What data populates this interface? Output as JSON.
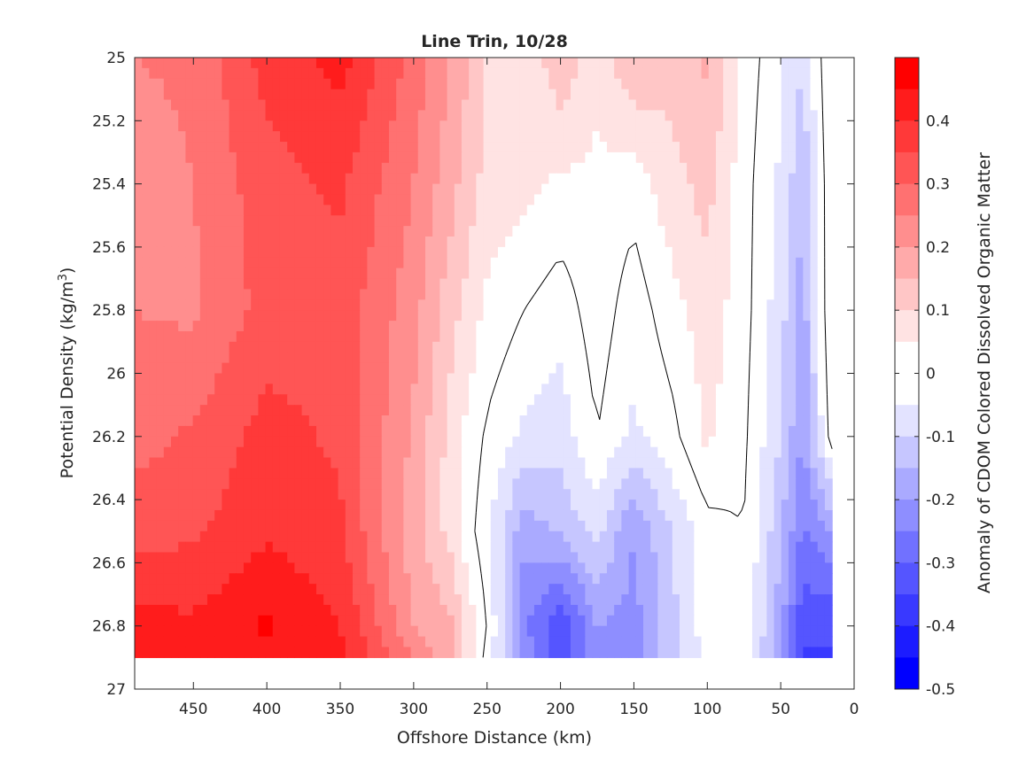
{
  "chart_data": {
    "type": "heatmap",
    "subtype": "filled-contour",
    "title": "Line Trin, 10/28",
    "xlabel": "Offshore Distance (km)",
    "ylabel_main": "Potential Density (kg/m",
    "ylabel_sup": "3",
    "ylabel_close": ")",
    "colorbar_label": "Anomaly of CDOM Colored Dissolved Organic Matter",
    "x_axis": {
      "lim": [
        490,
        0
      ],
      "reversed": true,
      "ticks": [
        450,
        400,
        350,
        300,
        250,
        200,
        150,
        100,
        50,
        0
      ],
      "tick_labels": [
        "450",
        "400",
        "350",
        "300",
        "250",
        "200",
        "150",
        "100",
        "50",
        "0"
      ]
    },
    "y_axis": {
      "lim": [
        25,
        27
      ],
      "reversed": true,
      "ticks": [
        25,
        25.2,
        25.4,
        25.6,
        25.8,
        26,
        26.2,
        26.4,
        26.6,
        26.8,
        27
      ],
      "tick_labels": [
        "25",
        "25.2",
        "25.4",
        "25.6",
        "25.8",
        "26",
        "26.2",
        "26.4",
        "26.6",
        "26.8",
        "27"
      ]
    },
    "colorbar": {
      "lim": [
        -0.5,
        0.5
      ],
      "ticks": [
        0.4,
        0.3,
        0.2,
        0.1,
        0,
        -0.1,
        -0.2,
        -0.3,
        -0.4,
        -0.5
      ],
      "tick_labels": [
        "0.4",
        "0.3",
        "0.2",
        "0.1",
        "0",
        "-0.1",
        "-0.2",
        "-0.3",
        "-0.4",
        "-0.5"
      ],
      "levels": [
        {
          "lo": 0.45,
          "hi": 0.5,
          "color": "#ff0000"
        },
        {
          "lo": 0.4,
          "hi": 0.45,
          "color": "#ff1c1c"
        },
        {
          "lo": 0.35,
          "hi": 0.4,
          "color": "#ff3939"
        },
        {
          "lo": 0.3,
          "hi": 0.35,
          "color": "#ff5555"
        },
        {
          "lo": 0.25,
          "hi": 0.3,
          "color": "#ff7171"
        },
        {
          "lo": 0.2,
          "hi": 0.25,
          "color": "#ff8e8e"
        },
        {
          "lo": 0.15,
          "hi": 0.2,
          "color": "#ffaaaa"
        },
        {
          "lo": 0.1,
          "hi": 0.15,
          "color": "#ffc6c6"
        },
        {
          "lo": 0.05,
          "hi": 0.1,
          "color": "#ffe3e3"
        },
        {
          "lo": 0.0,
          "hi": 0.05,
          "color": "#ffffff"
        },
        {
          "lo": -0.05,
          "hi": 0.0,
          "color": "#ffffff"
        },
        {
          "lo": -0.1,
          "hi": -0.05,
          "color": "#e3e3ff"
        },
        {
          "lo": -0.15,
          "hi": -0.1,
          "color": "#c6c6ff"
        },
        {
          "lo": -0.2,
          "hi": -0.15,
          "color": "#aaaaff"
        },
        {
          "lo": -0.25,
          "hi": -0.2,
          "color": "#8e8eff"
        },
        {
          "lo": -0.3,
          "hi": -0.25,
          "color": "#7171ff"
        },
        {
          "lo": -0.35,
          "hi": -0.3,
          "color": "#5555ff"
        },
        {
          "lo": -0.4,
          "hi": -0.35,
          "color": "#3939ff"
        },
        {
          "lo": -0.45,
          "hi": -0.4,
          "color": "#1c1cff"
        },
        {
          "lo": -0.5,
          "hi": -0.45,
          "color": "#0000ff"
        }
      ]
    },
    "data_extent": {
      "x_max": 490,
      "x_min": 15,
      "y_min": 25,
      "y_max": 26.9
    },
    "grid_x": [
      490,
      450,
      400,
      350,
      300,
      275,
      250,
      225,
      200,
      175,
      150,
      125,
      100,
      75,
      50,
      35,
      15
    ],
    "grid_y": [
      25,
      25.4,
      25.8,
      26.2,
      26.5,
      26.8,
      26.9
    ],
    "values": [
      [
        0.25,
        0.26,
        0.37,
        0.42,
        0.28,
        0.2,
        0.1,
        0.05,
        0.14,
        0.06,
        0.15,
        0.12,
        0.16,
        0.03,
        -0.04,
        -0.1,
        0.06
      ],
      [
        0.22,
        0.25,
        0.33,
        0.36,
        0.25,
        0.17,
        0.08,
        0.07,
        0.04,
        0.04,
        0.02,
        0.08,
        0.12,
        0.02,
        -0.06,
        -0.14,
        0.05
      ],
      [
        0.25,
        0.24,
        0.32,
        0.33,
        0.22,
        0.12,
        0.04,
        0.0,
        -0.03,
        0.03,
        -0.03,
        0.03,
        0.08,
        0.02,
        -0.08,
        -0.18,
        0.06
      ],
      [
        0.28,
        0.31,
        0.37,
        0.34,
        0.19,
        0.08,
        -0.01,
        -0.06,
        -0.08,
        0.0,
        -0.06,
        -0.02,
        0.06,
        0.01,
        -0.1,
        -0.2,
        0.03
      ],
      [
        0.33,
        0.34,
        0.39,
        0.36,
        0.17,
        0.08,
        -0.04,
        -0.18,
        -0.14,
        -0.08,
        -0.2,
        -0.1,
        -0.02,
        0.0,
        -0.14,
        -0.26,
        -0.2
      ],
      [
        0.42,
        0.41,
        0.46,
        0.4,
        0.2,
        0.16,
        0.0,
        -0.24,
        -0.35,
        -0.2,
        -0.22,
        -0.12,
        -0.02,
        0.0,
        -0.18,
        -0.34,
        -0.34
      ],
      [
        0.44,
        0.4,
        0.43,
        0.42,
        0.25,
        0.16,
        -0.02,
        -0.22,
        -0.32,
        -0.22,
        -0.22,
        -0.12,
        -0.04,
        -0.02,
        -0.2,
        -0.36,
        -0.36
      ]
    ]
  }
}
